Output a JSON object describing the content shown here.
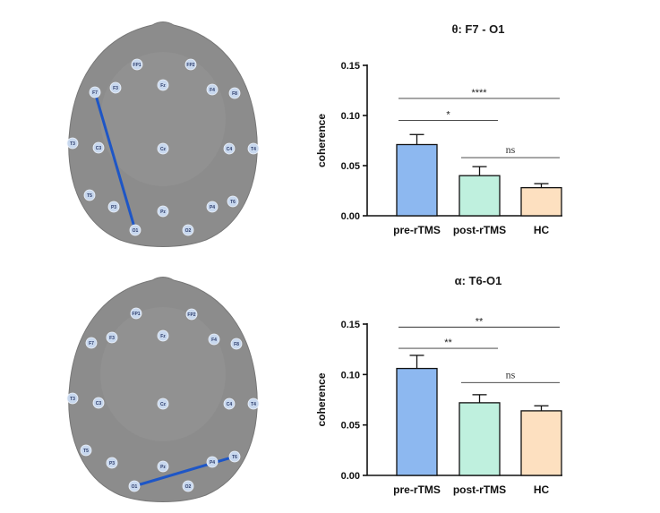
{
  "colors": {
    "pre_rTMS": "#8db8f0",
    "post_rTMS": "#bff0de",
    "HC": "#fde0c0",
    "connection": "#1e56c6",
    "head": "#8c8c8c",
    "electrode": "#c8d8ee"
  },
  "head_maps": [
    {
      "connection": [
        "F7",
        "O1"
      ],
      "electrodes": [
        "FP1",
        "FP2",
        "F7",
        "F3",
        "Fz",
        "F4",
        "F8",
        "T3",
        "C3",
        "Cz",
        "C4",
        "T4",
        "T5",
        "P3",
        "Pz",
        "P4",
        "T6",
        "O1",
        "O2"
      ]
    },
    {
      "connection": [
        "T6",
        "O1"
      ],
      "electrodes": [
        "FP1",
        "FP2",
        "F7",
        "F3",
        "Fz",
        "F4",
        "F8",
        "T3",
        "C3",
        "Cz",
        "C4",
        "T4",
        "T5",
        "P3",
        "Pz",
        "P4",
        "T6",
        "O1",
        "O2"
      ]
    }
  ],
  "chart_data": [
    {
      "type": "bar",
      "title": "θ:  F7 - O1",
      "ylabel": "coherence",
      "categories": [
        "pre-rTMS",
        "post-rTMS",
        "HC"
      ],
      "values": [
        0.071,
        0.04,
        0.028
      ],
      "errors": [
        0.01,
        0.009,
        0.004
      ],
      "ylim": [
        0,
        0.15
      ],
      "yticks": [
        "0.00",
        "0.05",
        "0.10",
        "0.15"
      ],
      "yticks_values": [
        0,
        0.05,
        0.1,
        0.15
      ],
      "significance": [
        {
          "from": 0,
          "to": 2,
          "label": "****",
          "y": 0.117
        },
        {
          "from": 0,
          "to": 1,
          "label": "*",
          "y": 0.095
        },
        {
          "from": 1,
          "to": 2,
          "label": "ns",
          "y": 0.058
        }
      ]
    },
    {
      "type": "bar",
      "title": "α: T6-O1",
      "ylabel": "coherence",
      "categories": [
        "pre-rTMS",
        "post-rTMS",
        "HC"
      ],
      "values": [
        0.106,
        0.072,
        0.064
      ],
      "errors": [
        0.013,
        0.008,
        0.005
      ],
      "ylim": [
        0,
        0.15
      ],
      "yticks": [
        "0.00",
        "0.05",
        "0.10",
        "0.15"
      ],
      "yticks_values": [
        0,
        0.05,
        0.1,
        0.15
      ],
      "significance": [
        {
          "from": 0,
          "to": 2,
          "label": "**",
          "y": 0.147
        },
        {
          "from": 0,
          "to": 1,
          "label": "**",
          "y": 0.126
        },
        {
          "from": 1,
          "to": 2,
          "label": "ns",
          "y": 0.092
        }
      ]
    }
  ]
}
